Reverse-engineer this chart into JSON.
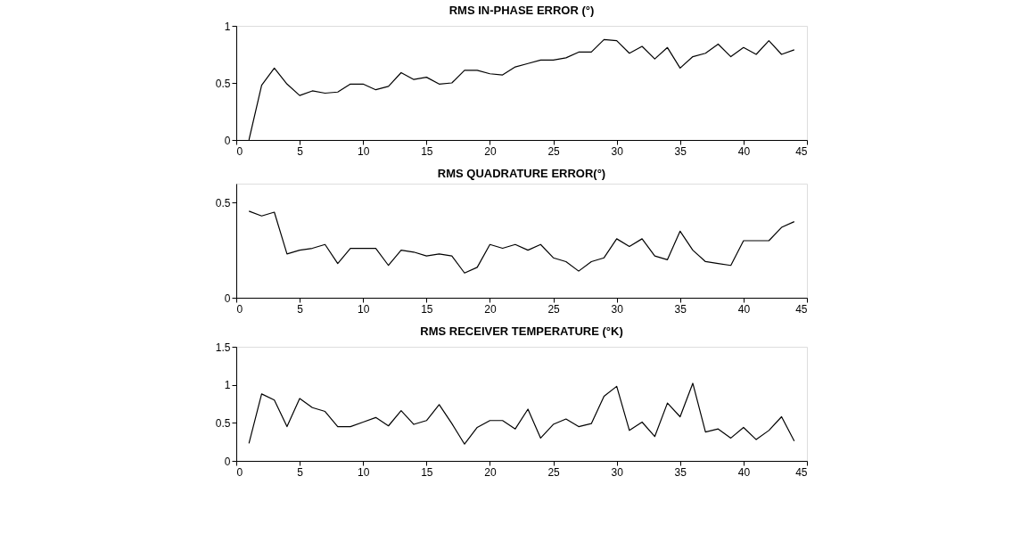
{
  "chart_data": [
    {
      "type": "line",
      "title": "RMS IN-PHASE ERROR (°)",
      "color": "#000000",
      "grid": false,
      "xlim": [
        0,
        45
      ],
      "xticks": [
        0,
        5,
        10,
        15,
        20,
        25,
        30,
        35,
        40,
        45
      ],
      "ylim": [
        0,
        1
      ],
      "yticks": [
        0,
        0.5,
        1
      ],
      "x": [
        1,
        2,
        3,
        4,
        5,
        6,
        7,
        8,
        9,
        10,
        11,
        12,
        13,
        14,
        15,
        16,
        17,
        18,
        19,
        20,
        21,
        22,
        23,
        24,
        25,
        26,
        27,
        28,
        29,
        30,
        31,
        32,
        33,
        34,
        35,
        36,
        37,
        38,
        39,
        40,
        41,
        42,
        43,
        44
      ],
      "values": [
        0,
        0.48,
        0.63,
        0.49,
        0.39,
        0.43,
        0.41,
        0.42,
        0.49,
        0.49,
        0.44,
        0.47,
        0.59,
        0.53,
        0.55,
        0.49,
        0.5,
        0.61,
        0.61,
        0.58,
        0.57,
        0.64,
        0.67,
        0.7,
        0.7,
        0.72,
        0.77,
        0.77,
        0.88,
        0.87,
        0.76,
        0.82,
        0.71,
        0.81,
        0.63,
        0.73,
        0.76,
        0.84,
        0.73,
        0.81,
        0.75,
        0.87,
        0.75,
        0.79
      ]
    },
    {
      "type": "line",
      "title": "RMS QUADRATURE ERROR(°)",
      "color": "#000000",
      "grid": false,
      "xlim": [
        0,
        45
      ],
      "xticks": [
        0,
        5,
        10,
        15,
        20,
        25,
        30,
        35,
        40,
        45
      ],
      "ylim": [
        0,
        0.6
      ],
      "yticks": [
        0,
        0.5
      ],
      "x": [
        1,
        2,
        3,
        4,
        5,
        6,
        7,
        8,
        9,
        10,
        11,
        12,
        13,
        14,
        15,
        16,
        17,
        18,
        19,
        20,
        21,
        22,
        23,
        24,
        25,
        26,
        27,
        28,
        29,
        30,
        31,
        32,
        33,
        34,
        35,
        36,
        37,
        38,
        39,
        40,
        41,
        42,
        43,
        44
      ],
      "values": [
        0.455,
        0.43,
        0.45,
        0.23,
        0.25,
        0.26,
        0.28,
        0.18,
        0.26,
        0.26,
        0.26,
        0.17,
        0.25,
        0.24,
        0.22,
        0.23,
        0.22,
        0.13,
        0.16,
        0.28,
        0.26,
        0.28,
        0.25,
        0.28,
        0.21,
        0.19,
        0.14,
        0.19,
        0.21,
        0.31,
        0.27,
        0.31,
        0.22,
        0.2,
        0.35,
        0.25,
        0.19,
        0.18,
        0.17,
        0.3,
        0.3,
        0.3,
        0.37,
        0.4
      ]
    },
    {
      "type": "line",
      "title": "RMS RECEIVER TEMPERATURE (°K)",
      "color": "#000000",
      "grid": false,
      "xlim": [
        0,
        45
      ],
      "xticks": [
        0,
        5,
        10,
        15,
        20,
        25,
        30,
        35,
        40,
        45
      ],
      "ylim": [
        0,
        1.5
      ],
      "yticks": [
        0,
        0.5,
        1,
        1.5
      ],
      "x": [
        1,
        2,
        3,
        4,
        5,
        6,
        7,
        8,
        9,
        10,
        11,
        12,
        13,
        14,
        15,
        16,
        17,
        18,
        19,
        20,
        21,
        22,
        23,
        24,
        25,
        26,
        27,
        28,
        29,
        30,
        31,
        32,
        33,
        34,
        35,
        36,
        37,
        38,
        39,
        40,
        41,
        42,
        43,
        44
      ],
      "values": [
        0.23,
        0.88,
        0.8,
        0.45,
        0.82,
        0.7,
        0.65,
        0.45,
        0.45,
        0.51,
        0.57,
        0.46,
        0.66,
        0.48,
        0.53,
        0.74,
        0.49,
        0.22,
        0.44,
        0.53,
        0.53,
        0.42,
        0.68,
        0.3,
        0.48,
        0.55,
        0.45,
        0.49,
        0.85,
        0.98,
        0.4,
        0.51,
        0.32,
        0.76,
        0.58,
        1.02,
        0.38,
        0.42,
        0.3,
        0.44,
        0.28,
        0.4,
        0.58,
        0.26
      ]
    }
  ]
}
